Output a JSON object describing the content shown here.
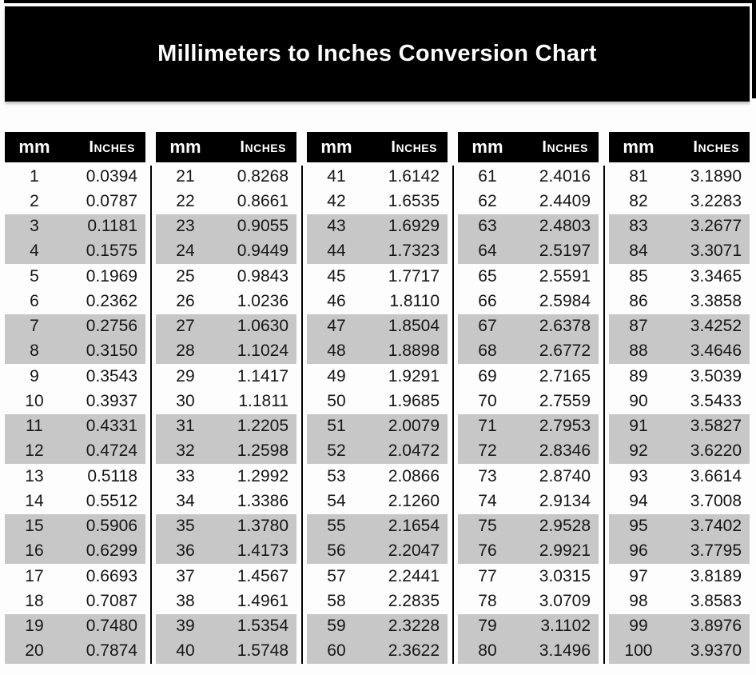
{
  "title": "Millimeters to Inches Conversion Chart",
  "column_headers": {
    "mm": "mm",
    "inches": "Inches"
  },
  "colors": {
    "banner_bg": "#000000",
    "header_bg": "#000000",
    "header_text": "#ffffff",
    "band_gray": "#c7c7c7",
    "text": "#161616",
    "edge_black": "#000000",
    "page_bg": "#fdfdfd"
  },
  "tables": [
    {
      "rows": [
        [
          "1",
          "0.0394"
        ],
        [
          "2",
          "0.0787"
        ],
        [
          "3",
          "0.1181"
        ],
        [
          "4",
          "0.1575"
        ],
        [
          "5",
          "0.1969"
        ],
        [
          "6",
          "0.2362"
        ],
        [
          "7",
          "0.2756"
        ],
        [
          "8",
          "0.3150"
        ],
        [
          "9",
          "0.3543"
        ],
        [
          "10",
          "0.3937"
        ],
        [
          "11",
          "0.4331"
        ],
        [
          "12",
          "0.4724"
        ],
        [
          "13",
          "0.5118"
        ],
        [
          "14",
          "0.5512"
        ],
        [
          "15",
          "0.5906"
        ],
        [
          "16",
          "0.6299"
        ],
        [
          "17",
          "0.6693"
        ],
        [
          "18",
          "0.7087"
        ],
        [
          "19",
          "0.7480"
        ],
        [
          "20",
          "0.7874"
        ]
      ]
    },
    {
      "rows": [
        [
          "21",
          "0.8268"
        ],
        [
          "22",
          "0.8661"
        ],
        [
          "23",
          "0.9055"
        ],
        [
          "24",
          "0.9449"
        ],
        [
          "25",
          "0.9843"
        ],
        [
          "26",
          "1.0236"
        ],
        [
          "27",
          "1.0630"
        ],
        [
          "28",
          "1.1024"
        ],
        [
          "29",
          "1.1417"
        ],
        [
          "30",
          "1.1811"
        ],
        [
          "31",
          "1.2205"
        ],
        [
          "32",
          "1.2598"
        ],
        [
          "33",
          "1.2992"
        ],
        [
          "34",
          "1.3386"
        ],
        [
          "35",
          "1.3780"
        ],
        [
          "36",
          "1.4173"
        ],
        [
          "37",
          "1.4567"
        ],
        [
          "38",
          "1.4961"
        ],
        [
          "39",
          "1.5354"
        ],
        [
          "40",
          "1.5748"
        ]
      ]
    },
    {
      "rows": [
        [
          "41",
          "1.6142"
        ],
        [
          "42",
          "1.6535"
        ],
        [
          "43",
          "1.6929"
        ],
        [
          "44",
          "1.7323"
        ],
        [
          "45",
          "1.7717"
        ],
        [
          "46",
          "1.8110"
        ],
        [
          "47",
          "1.8504"
        ],
        [
          "48",
          "1.8898"
        ],
        [
          "49",
          "1.9291"
        ],
        [
          "50",
          "1.9685"
        ],
        [
          "51",
          "2.0079"
        ],
        [
          "52",
          "2.0472"
        ],
        [
          "53",
          "2.0866"
        ],
        [
          "54",
          "2.1260"
        ],
        [
          "55",
          "2.1654"
        ],
        [
          "56",
          "2.2047"
        ],
        [
          "57",
          "2.2441"
        ],
        [
          "58",
          "2.2835"
        ],
        [
          "59",
          "2.3228"
        ],
        [
          "60",
          "2.3622"
        ]
      ]
    },
    {
      "rows": [
        [
          "61",
          "2.4016"
        ],
        [
          "62",
          "2.4409"
        ],
        [
          "63",
          "2.4803"
        ],
        [
          "64",
          "2.5197"
        ],
        [
          "65",
          "2.5591"
        ],
        [
          "66",
          "2.5984"
        ],
        [
          "67",
          "2.6378"
        ],
        [
          "68",
          "2.6772"
        ],
        [
          "69",
          "2.7165"
        ],
        [
          "70",
          "2.7559"
        ],
        [
          "71",
          "2.7953"
        ],
        [
          "72",
          "2.8346"
        ],
        [
          "73",
          "2.8740"
        ],
        [
          "74",
          "2.9134"
        ],
        [
          "75",
          "2.9528"
        ],
        [
          "76",
          "2.9921"
        ],
        [
          "77",
          "3.0315"
        ],
        [
          "78",
          "3.0709"
        ],
        [
          "79",
          "3.1102"
        ],
        [
          "80",
          "3.1496"
        ]
      ]
    },
    {
      "rows": [
        [
          "81",
          "3.1890"
        ],
        [
          "82",
          "3.2283"
        ],
        [
          "83",
          "3.2677"
        ],
        [
          "84",
          "3.3071"
        ],
        [
          "85",
          "3.3465"
        ],
        [
          "86",
          "3.3858"
        ],
        [
          "87",
          "3.4252"
        ],
        [
          "88",
          "3.4646"
        ],
        [
          "89",
          "3.5039"
        ],
        [
          "90",
          "3.5433"
        ],
        [
          "91",
          "3.5827"
        ],
        [
          "92",
          "3.6220"
        ],
        [
          "93",
          "3.6614"
        ],
        [
          "94",
          "3.7008"
        ],
        [
          "95",
          "3.7402"
        ],
        [
          "96",
          "3.7795"
        ],
        [
          "97",
          "3.8189"
        ],
        [
          "98",
          "3.8583"
        ],
        [
          "99",
          "3.8976"
        ],
        [
          "100",
          "3.9370"
        ]
      ]
    }
  ]
}
